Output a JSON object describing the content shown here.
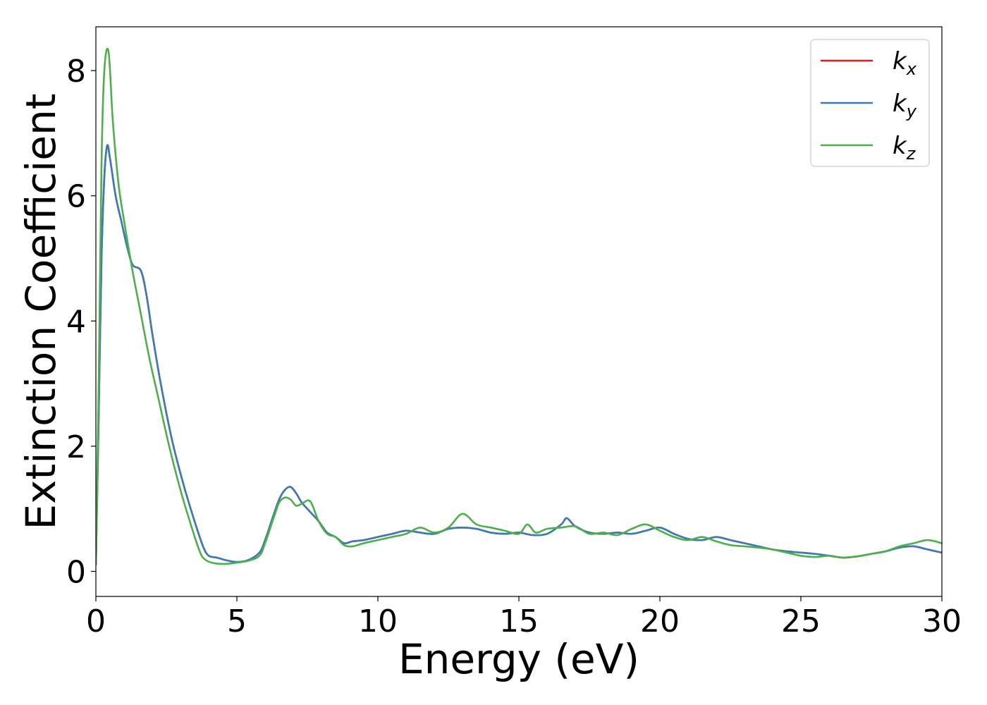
{
  "chart_data": {
    "type": "line",
    "xlabel": "Energy (eV)",
    "ylabel": "Extinction Coefficient",
    "xlim": [
      0,
      30
    ],
    "ylim": [
      -0.4,
      8.7
    ],
    "xticks": [
      0,
      5,
      10,
      15,
      20,
      25,
      30
    ],
    "yticks": [
      0,
      2,
      4,
      6,
      8
    ],
    "grid": false,
    "legend_position": "top-right",
    "series": [
      {
        "name": "k",
        "subscript": "x",
        "color": "#e41a1c",
        "x": [
          0,
          0.1,
          0.2,
          0.3,
          0.4,
          0.5,
          0.7,
          0.9,
          1.1,
          1.3,
          1.6,
          1.8,
          2.0,
          2.3,
          2.7,
          3.1,
          3.5,
          3.8,
          4.0,
          4.3,
          4.6,
          5.0,
          5.4,
          5.8,
          6.0,
          6.3,
          6.5,
          6.7,
          6.9,
          7.1,
          7.3,
          7.6,
          7.9,
          8.2,
          8.5,
          8.8,
          9.1,
          9.5,
          10.0,
          10.5,
          11.0,
          11.5,
          12.0,
          12.5,
          13.0,
          13.5,
          14.0,
          14.5,
          15.0,
          15.5,
          16.0,
          16.5,
          16.7,
          17.0,
          17.5,
          18.0,
          18.5,
          19.0,
          19.5,
          20.0,
          20.5,
          21.0,
          21.5,
          22.0,
          22.5,
          23.0,
          23.5,
          24.0,
          24.5,
          25.0,
          25.5,
          26.0,
          26.5,
          27.0,
          27.5,
          28.0,
          28.5,
          29.0,
          29.5,
          30.0
        ],
        "values": [
          0.1,
          2.5,
          5.0,
          6.3,
          6.8,
          6.6,
          6.0,
          5.6,
          5.2,
          4.9,
          4.8,
          4.4,
          3.8,
          3.0,
          2.1,
          1.4,
          0.8,
          0.4,
          0.25,
          0.22,
          0.18,
          0.15,
          0.18,
          0.3,
          0.5,
          0.9,
          1.15,
          1.3,
          1.35,
          1.25,
          1.1,
          0.95,
          0.8,
          0.62,
          0.55,
          0.45,
          0.48,
          0.5,
          0.55,
          0.6,
          0.65,
          0.62,
          0.6,
          0.68,
          0.7,
          0.68,
          0.62,
          0.6,
          0.62,
          0.58,
          0.6,
          0.75,
          0.85,
          0.72,
          0.62,
          0.6,
          0.62,
          0.6,
          0.65,
          0.7,
          0.6,
          0.52,
          0.5,
          0.55,
          0.5,
          0.45,
          0.4,
          0.35,
          0.32,
          0.3,
          0.28,
          0.25,
          0.22,
          0.24,
          0.28,
          0.32,
          0.38,
          0.4,
          0.35,
          0.3
        ]
      },
      {
        "name": "k",
        "subscript": "y",
        "color": "#377eb8",
        "x": [
          0,
          0.1,
          0.2,
          0.3,
          0.4,
          0.5,
          0.7,
          0.9,
          1.1,
          1.3,
          1.6,
          1.8,
          2.0,
          2.3,
          2.7,
          3.1,
          3.5,
          3.8,
          4.0,
          4.3,
          4.6,
          5.0,
          5.4,
          5.8,
          6.0,
          6.3,
          6.5,
          6.7,
          6.9,
          7.1,
          7.3,
          7.6,
          7.9,
          8.2,
          8.5,
          8.8,
          9.1,
          9.5,
          10.0,
          10.5,
          11.0,
          11.5,
          12.0,
          12.5,
          13.0,
          13.5,
          14.0,
          14.5,
          15.0,
          15.5,
          16.0,
          16.5,
          16.7,
          17.0,
          17.5,
          18.0,
          18.5,
          19.0,
          19.5,
          20.0,
          20.5,
          21.0,
          21.5,
          22.0,
          22.5,
          23.0,
          23.5,
          24.0,
          24.5,
          25.0,
          25.5,
          26.0,
          26.5,
          27.0,
          27.5,
          28.0,
          28.5,
          29.0,
          29.5,
          30.0
        ],
        "values": [
          0.1,
          2.5,
          5.0,
          6.3,
          6.8,
          6.6,
          6.0,
          5.6,
          5.2,
          4.9,
          4.8,
          4.4,
          3.8,
          3.0,
          2.1,
          1.4,
          0.8,
          0.4,
          0.25,
          0.22,
          0.18,
          0.15,
          0.18,
          0.3,
          0.5,
          0.9,
          1.15,
          1.3,
          1.35,
          1.25,
          1.1,
          0.95,
          0.8,
          0.62,
          0.55,
          0.45,
          0.48,
          0.5,
          0.55,
          0.6,
          0.65,
          0.62,
          0.6,
          0.68,
          0.7,
          0.68,
          0.62,
          0.6,
          0.62,
          0.58,
          0.6,
          0.75,
          0.85,
          0.72,
          0.62,
          0.6,
          0.62,
          0.6,
          0.65,
          0.7,
          0.6,
          0.52,
          0.5,
          0.55,
          0.5,
          0.45,
          0.4,
          0.35,
          0.32,
          0.3,
          0.28,
          0.25,
          0.22,
          0.24,
          0.28,
          0.32,
          0.38,
          0.4,
          0.35,
          0.3
        ]
      },
      {
        "name": "k",
        "subscript": "z",
        "color": "#4daf4a",
        "x": [
          0,
          0.1,
          0.2,
          0.3,
          0.45,
          0.6,
          0.8,
          1.0,
          1.3,
          1.6,
          1.9,
          2.2,
          2.6,
          3.0,
          3.4,
          3.7,
          3.9,
          4.2,
          4.6,
          5.0,
          5.4,
          5.8,
          6.0,
          6.3,
          6.5,
          6.7,
          6.9,
          7.1,
          7.3,
          7.6,
          7.9,
          8.2,
          8.5,
          8.8,
          9.1,
          9.5,
          10.0,
          10.5,
          11.0,
          11.5,
          12.0,
          12.5,
          13.0,
          13.5,
          14.0,
          14.5,
          15.0,
          15.3,
          15.6,
          16.0,
          16.5,
          17.0,
          17.5,
          18.0,
          18.5,
          19.0,
          19.5,
          20.0,
          20.5,
          21.0,
          21.5,
          22.0,
          22.5,
          23.0,
          23.5,
          24.0,
          24.5,
          25.0,
          25.5,
          26.0,
          26.5,
          27.0,
          27.5,
          28.0,
          28.5,
          29.0,
          29.5,
          30.0
        ],
        "values": [
          0.1,
          3.0,
          6.5,
          8.0,
          8.3,
          7.2,
          6.2,
          5.6,
          4.8,
          4.1,
          3.4,
          2.8,
          2.0,
          1.3,
          0.7,
          0.3,
          0.18,
          0.13,
          0.12,
          0.14,
          0.17,
          0.25,
          0.45,
          0.85,
          1.1,
          1.18,
          1.15,
          1.05,
          1.08,
          1.12,
          0.8,
          0.6,
          0.55,
          0.42,
          0.4,
          0.45,
          0.5,
          0.55,
          0.6,
          0.7,
          0.62,
          0.7,
          0.92,
          0.75,
          0.7,
          0.65,
          0.6,
          0.75,
          0.62,
          0.68,
          0.7,
          0.72,
          0.6,
          0.62,
          0.58,
          0.68,
          0.75,
          0.65,
          0.55,
          0.5,
          0.55,
          0.48,
          0.42,
          0.4,
          0.38,
          0.35,
          0.3,
          0.25,
          0.23,
          0.25,
          0.22,
          0.24,
          0.28,
          0.32,
          0.4,
          0.45,
          0.5,
          0.45
        ]
      }
    ]
  }
}
